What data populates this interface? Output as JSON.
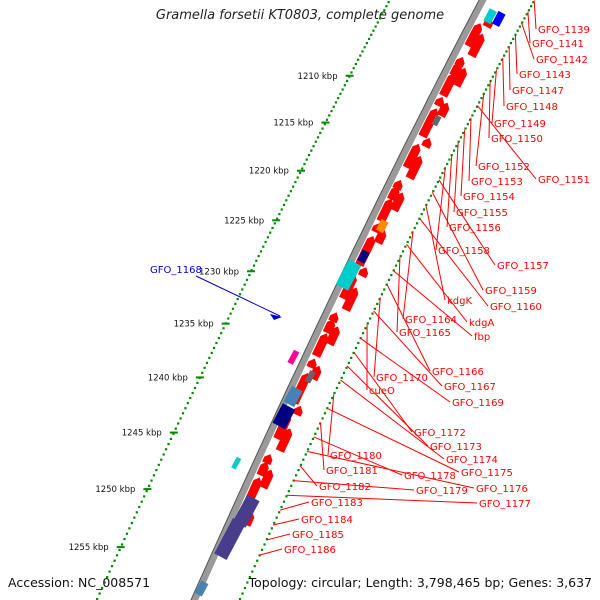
{
  "title": "Gramella forsetii KT0803, complete genome",
  "footer": {
    "accession": "Accession: NC_008571",
    "topology": "Topology: circular; Length: 3,798,465 bp; Genes: 3,637"
  },
  "scale_labels": [
    {
      "kbp": 1210,
      "label": "1210 kbp"
    },
    {
      "kbp": 1215,
      "label": "1215 kbp"
    },
    {
      "kbp": 1220,
      "label": "1220 kbp"
    },
    {
      "kbp": 1225,
      "label": "1225 kbp"
    },
    {
      "kbp": 1230,
      "label": "1230 kbp"
    },
    {
      "kbp": 1235,
      "label": "1235 kbp"
    },
    {
      "kbp": 1240,
      "label": "1240 kbp"
    },
    {
      "kbp": 1245,
      "label": "1245 kbp"
    },
    {
      "kbp": 1250,
      "label": "1250 kbp"
    },
    {
      "kbp": 1255,
      "label": "1255 kbp"
    }
  ],
  "gene_labels_right": [
    {
      "name": "GFO_1139"
    },
    {
      "name": "GFO_1141"
    },
    {
      "name": "GFO_1142"
    },
    {
      "name": "GFO_1143"
    },
    {
      "name": "GFO_1147"
    },
    {
      "name": "GFO_1148"
    },
    {
      "name": "GFO_1149"
    },
    {
      "name": "GFO_1150"
    },
    {
      "name": "GFO_1152"
    },
    {
      "name": "GFO_1151"
    },
    {
      "name": "GFO_1153"
    },
    {
      "name": "GFO_1154"
    },
    {
      "name": "GFO_1155"
    },
    {
      "name": "GFO_1156"
    },
    {
      "name": "GFO_1158"
    },
    {
      "name": "GFO_1157"
    },
    {
      "name": "GFO_1159"
    },
    {
      "name": "kdgK"
    },
    {
      "name": "GFO_1160"
    },
    {
      "name": "GFO_1164"
    },
    {
      "name": "kdgA"
    },
    {
      "name": "GFO_1165"
    },
    {
      "name": "fbp"
    },
    {
      "name": "GFO_1166"
    },
    {
      "name": "GFO_1170"
    },
    {
      "name": "GFO_1167"
    },
    {
      "name": "cueO"
    },
    {
      "name": "GFO_1169"
    },
    {
      "name": "GFO_1172"
    },
    {
      "name": "GFO_1173"
    },
    {
      "name": "GFO_1174"
    },
    {
      "name": "GFO_1180"
    },
    {
      "name": "GFO_1175"
    },
    {
      "name": "GFO_1181"
    },
    {
      "name": "GFO_1178"
    },
    {
      "name": "GFO_1176"
    },
    {
      "name": "GFO_1182"
    },
    {
      "name": "GFO_1179"
    },
    {
      "name": "GFO_1177"
    },
    {
      "name": "GFO_1183"
    },
    {
      "name": "GFO_1184"
    },
    {
      "name": "GFO_1185"
    },
    {
      "name": "GFO_1186"
    }
  ],
  "gene_label_left": {
    "name": "GFO_1168"
  },
  "colors": {
    "cds": "#ff0000",
    "label_red": "#ff0000",
    "label_blue": "#0000cc",
    "tick_green": "#008800",
    "backbone": "#888888",
    "cyan": "#00cccc",
    "navy": "#000080",
    "steelblue": "#4682b4",
    "slate": "#483d8b",
    "orange": "#ff8c00",
    "magenta": "#ff0099",
    "gray_block": "#666666"
  }
}
